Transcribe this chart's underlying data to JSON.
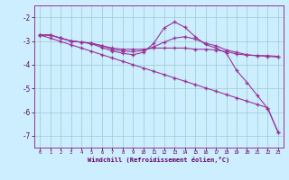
{
  "title": "",
  "xlabel": "Windchill (Refroidissement éolien,°C)",
  "bg_color": "#cceeff",
  "grid_color": "#99cccc",
  "line_color": "#993399",
  "xlim": [
    -0.5,
    23.5
  ],
  "ylim": [
    -7.5,
    -1.5
  ],
  "xticks": [
    0,
    1,
    2,
    3,
    4,
    5,
    6,
    7,
    8,
    9,
    10,
    11,
    12,
    13,
    14,
    15,
    16,
    17,
    18,
    19,
    20,
    21,
    22,
    23
  ],
  "yticks": [
    -7,
    -6,
    -5,
    -4,
    -3,
    -2
  ],
  "lines": [
    {
      "x": [
        0,
        1,
        2,
        3,
        4,
        5,
        6,
        7,
        8,
        9,
        10,
        11,
        12,
        13,
        14,
        15,
        16,
        17,
        18,
        19,
        20,
        21,
        22,
        23
      ],
      "y": [
        -2.75,
        -2.75,
        -2.88,
        -3.0,
        -3.05,
        -3.1,
        -3.2,
        -3.3,
        -3.35,
        -3.35,
        -3.35,
        -3.3,
        -3.3,
        -3.3,
        -3.3,
        -3.35,
        -3.35,
        -3.38,
        -3.45,
        -3.55,
        -3.6,
        -3.62,
        -3.62,
        -3.65
      ]
    },
    {
      "x": [
        0,
        1,
        2,
        3,
        4,
        5,
        6,
        7,
        8,
        9,
        10,
        11,
        12,
        13,
        14,
        15,
        16,
        17,
        18,
        19,
        20,
        21,
        22,
        23
      ],
      "y": [
        -2.75,
        -2.75,
        -2.88,
        -3.0,
        -3.05,
        -3.1,
        -3.2,
        -3.35,
        -3.42,
        -3.45,
        -3.4,
        -3.25,
        -3.05,
        -2.88,
        -2.82,
        -2.92,
        -3.1,
        -3.2,
        -3.38,
        -3.48,
        -3.58,
        -3.62,
        -3.65,
        -3.68
      ]
    },
    {
      "x": [
        0,
        1,
        2,
        3,
        4,
        5,
        6,
        7,
        8,
        9,
        10,
        11,
        12,
        13,
        14,
        15,
        16,
        17,
        18,
        19,
        20,
        21,
        22,
        23
      ],
      "y": [
        -2.75,
        -2.75,
        -2.88,
        -3.0,
        -3.05,
        -3.12,
        -3.28,
        -3.42,
        -3.52,
        -3.58,
        -3.48,
        -3.1,
        -2.45,
        -2.2,
        -2.42,
        -2.82,
        -3.15,
        -3.3,
        -3.5,
        -4.25,
        -4.75,
        -5.3,
        -5.85,
        -6.85
      ]
    },
    {
      "x": [
        0,
        1,
        2,
        3,
        4,
        5,
        6,
        7,
        8,
        9,
        10,
        11,
        12,
        13,
        14,
        15,
        16,
        17,
        18,
        19,
        20,
        21,
        22,
        23
      ],
      "y": [
        -2.75,
        -2.88,
        -3.02,
        -3.16,
        -3.3,
        -3.44,
        -3.58,
        -3.72,
        -3.86,
        -4.0,
        -4.14,
        -4.28,
        -4.42,
        -4.56,
        -4.7,
        -4.84,
        -4.98,
        -5.12,
        -5.26,
        -5.4,
        -5.54,
        -5.68,
        -5.82,
        -6.85
      ]
    }
  ]
}
